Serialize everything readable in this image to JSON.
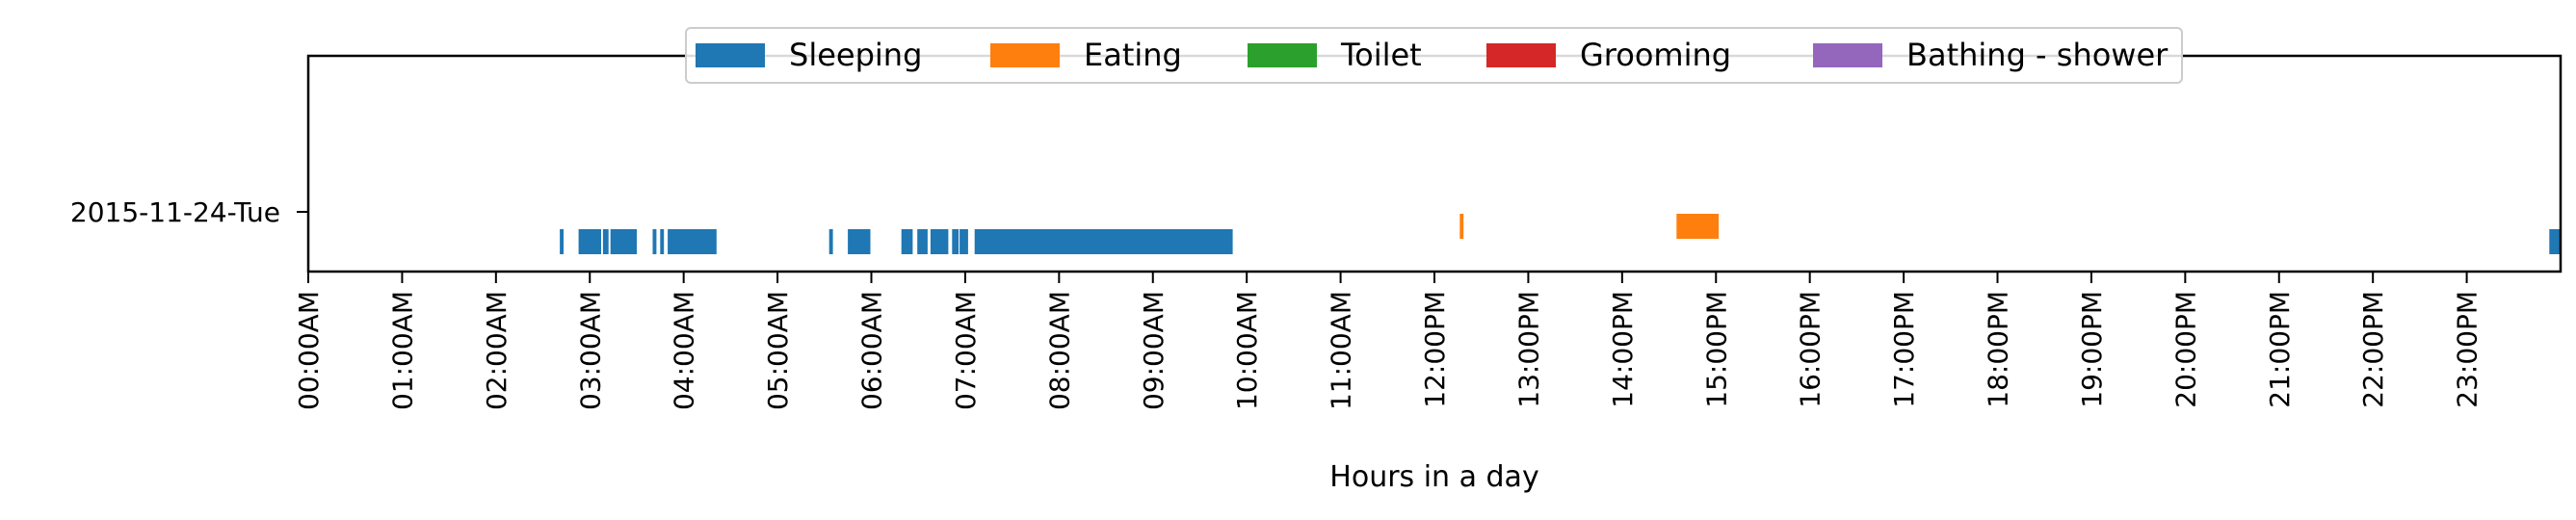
{
  "chart_data": {
    "type": "timeline",
    "title": "",
    "xlabel": "Hours in a day",
    "ylabel": "",
    "x_unit": "hours",
    "xlim": [
      0,
      24
    ],
    "rows": [
      "2015-11-24-Tue"
    ],
    "xtick_values": [
      0,
      1,
      2,
      3,
      4,
      5,
      6,
      7,
      8,
      9,
      10,
      11,
      12,
      13,
      14,
      15,
      16,
      17,
      18,
      19,
      20,
      21,
      22,
      23
    ],
    "xtick_labels": [
      "00:00AM",
      "01:00AM",
      "02:00AM",
      "03:00AM",
      "04:00AM",
      "05:00AM",
      "06:00AM",
      "07:00AM",
      "08:00AM",
      "09:00AM",
      "10:00AM",
      "11:00AM",
      "12:00PM",
      "13:00PM",
      "14:00PM",
      "15:00PM",
      "16:00PM",
      "17:00PM",
      "18:00PM",
      "19:00PM",
      "20:00PM",
      "21:00PM",
      "22:00PM",
      "23:00PM"
    ],
    "legend_position": "top-center",
    "grid": false,
    "series": [
      {
        "name": "Sleeping",
        "color": "#1f77b4",
        "level": "low",
        "segments": [
          [
            2.68,
            2.72
          ],
          [
            2.88,
            3.12
          ],
          [
            3.14,
            3.2
          ],
          [
            3.22,
            3.5
          ],
          [
            3.67,
            3.71
          ],
          [
            3.75,
            3.79
          ],
          [
            3.83,
            4.35
          ],
          [
            5.55,
            5.59
          ],
          [
            5.75,
            5.99
          ],
          [
            6.32,
            6.44
          ],
          [
            6.49,
            6.6
          ],
          [
            6.63,
            6.82
          ],
          [
            6.86,
            6.93
          ],
          [
            6.94,
            7.03
          ],
          [
            7.1,
            9.85
          ],
          [
            23.88,
            24.0
          ]
        ]
      },
      {
        "name": "Eating",
        "color": "#ff7f0e",
        "level": "high",
        "segments": [
          [
            12.27,
            12.31
          ],
          [
            14.58,
            15.03
          ]
        ]
      },
      {
        "name": "Toilet",
        "color": "#2ca02c",
        "level": "low",
        "segments": []
      },
      {
        "name": "Grooming",
        "color": "#d62728",
        "level": "low",
        "segments": []
      },
      {
        "name": "Bathing - shower",
        "color": "#9467bd",
        "level": "low",
        "segments": []
      }
    ]
  }
}
